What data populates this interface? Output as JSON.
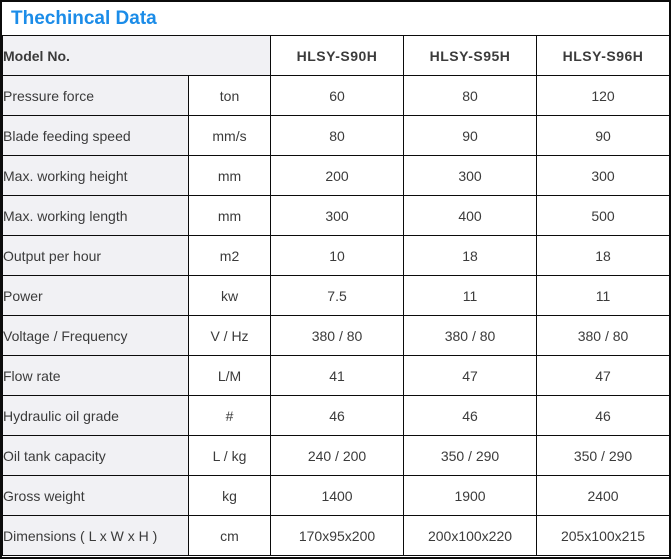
{
  "title": "Thechincal Data",
  "colors": {
    "title_blue": "#1b8ce8",
    "label_cell_bg": "#f1f1f4",
    "grid_border": "#0b0b0b",
    "body_text": "#3b3b3b"
  },
  "table": {
    "header": {
      "label": "Model No.",
      "models": [
        "HLSY-S90H",
        "HLSY-S95H",
        "HLSY-S96H"
      ]
    },
    "rows": [
      {
        "label": "Pressure force",
        "unit": "ton",
        "values": [
          "60",
          "80",
          "120"
        ]
      },
      {
        "label": "Blade feeding speed",
        "unit": "mm/s",
        "values": [
          "80",
          "90",
          "90"
        ]
      },
      {
        "label": "Max. working height",
        "unit": "mm",
        "values": [
          "200",
          "300",
          "300"
        ]
      },
      {
        "label": "Max. working length",
        "unit": "mm",
        "values": [
          "300",
          "400",
          "500"
        ]
      },
      {
        "label": "Output per hour",
        "unit": "m2",
        "values": [
          "10",
          "18",
          "18"
        ]
      },
      {
        "label": "Power",
        "unit": "kw",
        "values": [
          "7.5",
          "11",
          "11"
        ]
      },
      {
        "label": "Voltage / Frequency",
        "unit": "V / Hz",
        "values": [
          "380 / 80",
          "380 / 80",
          "380 / 80"
        ]
      },
      {
        "label": "Flow rate",
        "unit": "L/M",
        "values": [
          "41",
          "47",
          "47"
        ]
      },
      {
        "label": "Hydraulic oil grade",
        "unit": "#",
        "values": [
          "46",
          "46",
          "46"
        ]
      },
      {
        "label": "Oil tank capacity",
        "unit": "L / kg",
        "values": [
          "240 / 200",
          "350 / 290",
          "350 / 290"
        ]
      },
      {
        "label": "Gross weight",
        "unit": "kg",
        "values": [
          "1400",
          "1900",
          "2400"
        ]
      },
      {
        "label": "Dimensions ( L x W x H )",
        "unit": "cm",
        "values": [
          "170x95x200",
          "200x100x220",
          "205x100x215"
        ]
      }
    ]
  }
}
